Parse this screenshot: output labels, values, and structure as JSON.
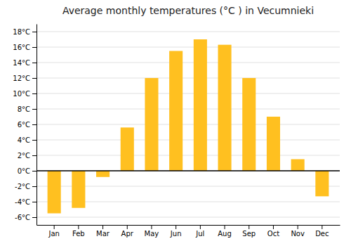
{
  "chart_data": {
    "type": "bar",
    "title": "Average monthly temperatures (°C ) in Vecumnieki",
    "categories": [
      "Jan",
      "Feb",
      "Mar",
      "Apr",
      "May",
      "Jun",
      "Jul",
      "Aug",
      "Sep",
      "Oct",
      "Nov",
      "Dec"
    ],
    "values": [
      -5.5,
      -4.8,
      -0.8,
      5.6,
      12.0,
      15.5,
      17.0,
      16.3,
      12.0,
      7.0,
      1.5,
      -3.3
    ],
    "color": "#FFC020",
    "ylim": [
      -7,
      19
    ],
    "yticks": [
      {
        "value": -6,
        "label": "-6°C"
      },
      {
        "value": -4,
        "label": "-4°C"
      },
      {
        "value": -2,
        "label": "-2°C"
      },
      {
        "value": 0,
        "label": "0°C"
      },
      {
        "value": 2,
        "label": "2°C"
      },
      {
        "value": 4,
        "label": "4°C"
      },
      {
        "value": 6,
        "label": "6°C"
      },
      {
        "value": 8,
        "label": "8°C"
      },
      {
        "value": 10,
        "label": "10°C"
      },
      {
        "value": 12,
        "label": "12°C"
      },
      {
        "value": 14,
        "label": "14°C"
      },
      {
        "value": 16,
        "label": "16°C"
      },
      {
        "value": 18,
        "label": "18°C"
      }
    ],
    "grid": true
  }
}
